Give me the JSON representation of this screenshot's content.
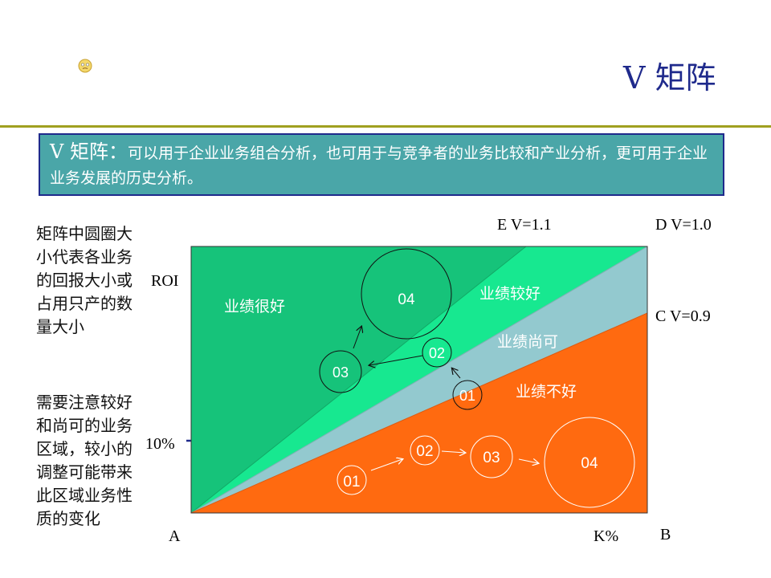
{
  "title": "V 矩阵",
  "definition": {
    "head": "V 矩阵：",
    "body": "可以用于企业业务组合分析，也可用于与竞争者的业务比较和产业分析，更可用于企业业务发展的历史分析。"
  },
  "notes": {
    "note1": "矩阵中圆圈大小代表各业务的回报大小或占用只产的数量大小",
    "note2": "需要注意较好和尚可的业务区域，较小的调整可能带来此区域业务性质的变化"
  },
  "axes": {
    "roi": "ROI",
    "ten_percent": "10%",
    "a": "A",
    "b": "B",
    "k": "K%",
    "e": "E  V=1.1",
    "d": "D  V=1.0",
    "c": "C  V=0.9"
  },
  "zones": {
    "very_good": "业绩很好",
    "good": "业绩较好",
    "fair": "业绩尚可",
    "poor": "业绩不好"
  },
  "circles": {
    "upper": [
      "01",
      "02",
      "03",
      "04"
    ],
    "lower": [
      "01",
      "02",
      "03",
      "04"
    ]
  },
  "colors": {
    "title": "#1f2a8c",
    "definition_bg": "#4aa6a8",
    "very_good": "#16c37a",
    "good": "#17e890",
    "fair": "#93c9cf",
    "poor": "#ff6a10"
  }
}
